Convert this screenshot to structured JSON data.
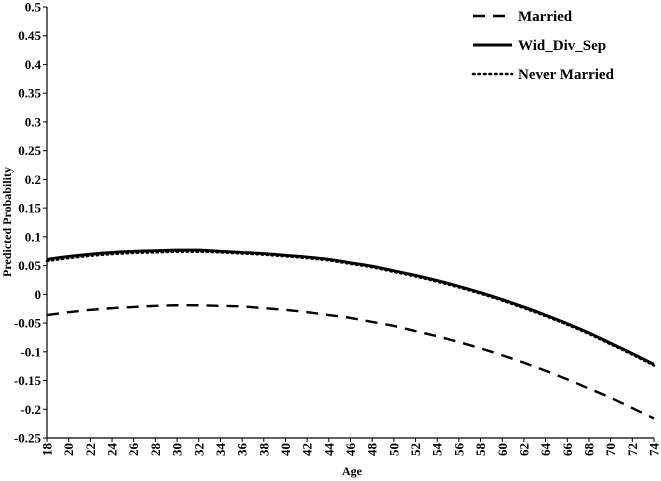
{
  "chart_data": {
    "type": "line",
    "title": "",
    "xlabel": "Age",
    "ylabel": "Predicted Probability",
    "x": [
      18,
      20,
      22,
      24,
      26,
      28,
      30,
      32,
      34,
      36,
      38,
      40,
      42,
      44,
      46,
      48,
      50,
      52,
      54,
      56,
      58,
      60,
      62,
      64,
      66,
      68,
      70,
      72,
      74
    ],
    "xlim": [
      18,
      74
    ],
    "ylim": [
      -0.25,
      0.5
    ],
    "x_ticks": [
      "18",
      "20",
      "22",
      "24",
      "26",
      "28",
      "30",
      "32",
      "34",
      "36",
      "38",
      "40",
      "42",
      "44",
      "46",
      "48",
      "50",
      "52",
      "54",
      "56",
      "58",
      "60",
      "62",
      "64",
      "66",
      "68",
      "70",
      "72",
      "74"
    ],
    "y_ticks": [
      "0.5",
      "0.45",
      "0.4",
      "0.35",
      "0.3",
      "0.25",
      "0.2",
      "0.15",
      "0.1",
      "0.05",
      "0",
      "-0.05",
      "-0.1",
      "-0.15",
      "-0.2",
      "-0.25"
    ],
    "y_tick_values": [
      0.5,
      0.45,
      0.4,
      0.35,
      0.3,
      0.25,
      0.2,
      0.15,
      0.1,
      0.05,
      0,
      -0.05,
      -0.1,
      -0.15,
      -0.2,
      -0.25
    ],
    "grid": false,
    "legend_position": "top-right",
    "series": [
      {
        "name": "Married",
        "style": "dashed",
        "color": "#000000",
        "values": [
          -0.036,
          -0.031,
          -0.027,
          -0.024,
          -0.022,
          -0.02,
          -0.019,
          -0.019,
          -0.02,
          -0.021,
          -0.024,
          -0.027,
          -0.031,
          -0.036,
          -0.041,
          -0.048,
          -0.055,
          -0.064,
          -0.073,
          -0.083,
          -0.094,
          -0.106,
          -0.119,
          -0.133,
          -0.148,
          -0.164,
          -0.18,
          -0.198,
          -0.216
        ]
      },
      {
        "name": "Wid_Div_Sep",
        "style": "solid",
        "color": "#000000",
        "values": [
          0.061,
          0.066,
          0.07,
          0.073,
          0.075,
          0.076,
          0.077,
          0.077,
          0.075,
          0.073,
          0.071,
          0.068,
          0.065,
          0.061,
          0.055,
          0.049,
          0.041,
          0.033,
          0.024,
          0.014,
          0.003,
          -0.009,
          -0.022,
          -0.036,
          -0.051,
          -0.067,
          -0.085,
          -0.103,
          -0.122
        ]
      },
      {
        "name": "Never Married",
        "style": "dotted",
        "color": "#000000",
        "values": [
          0.058,
          0.063,
          0.067,
          0.07,
          0.072,
          0.073,
          0.074,
          0.074,
          0.073,
          0.071,
          0.069,
          0.066,
          0.063,
          0.059,
          0.053,
          0.047,
          0.039,
          0.031,
          0.022,
          0.012,
          0.001,
          -0.011,
          -0.024,
          -0.038,
          -0.053,
          -0.069,
          -0.087,
          -0.105,
          -0.124
        ]
      }
    ]
  }
}
